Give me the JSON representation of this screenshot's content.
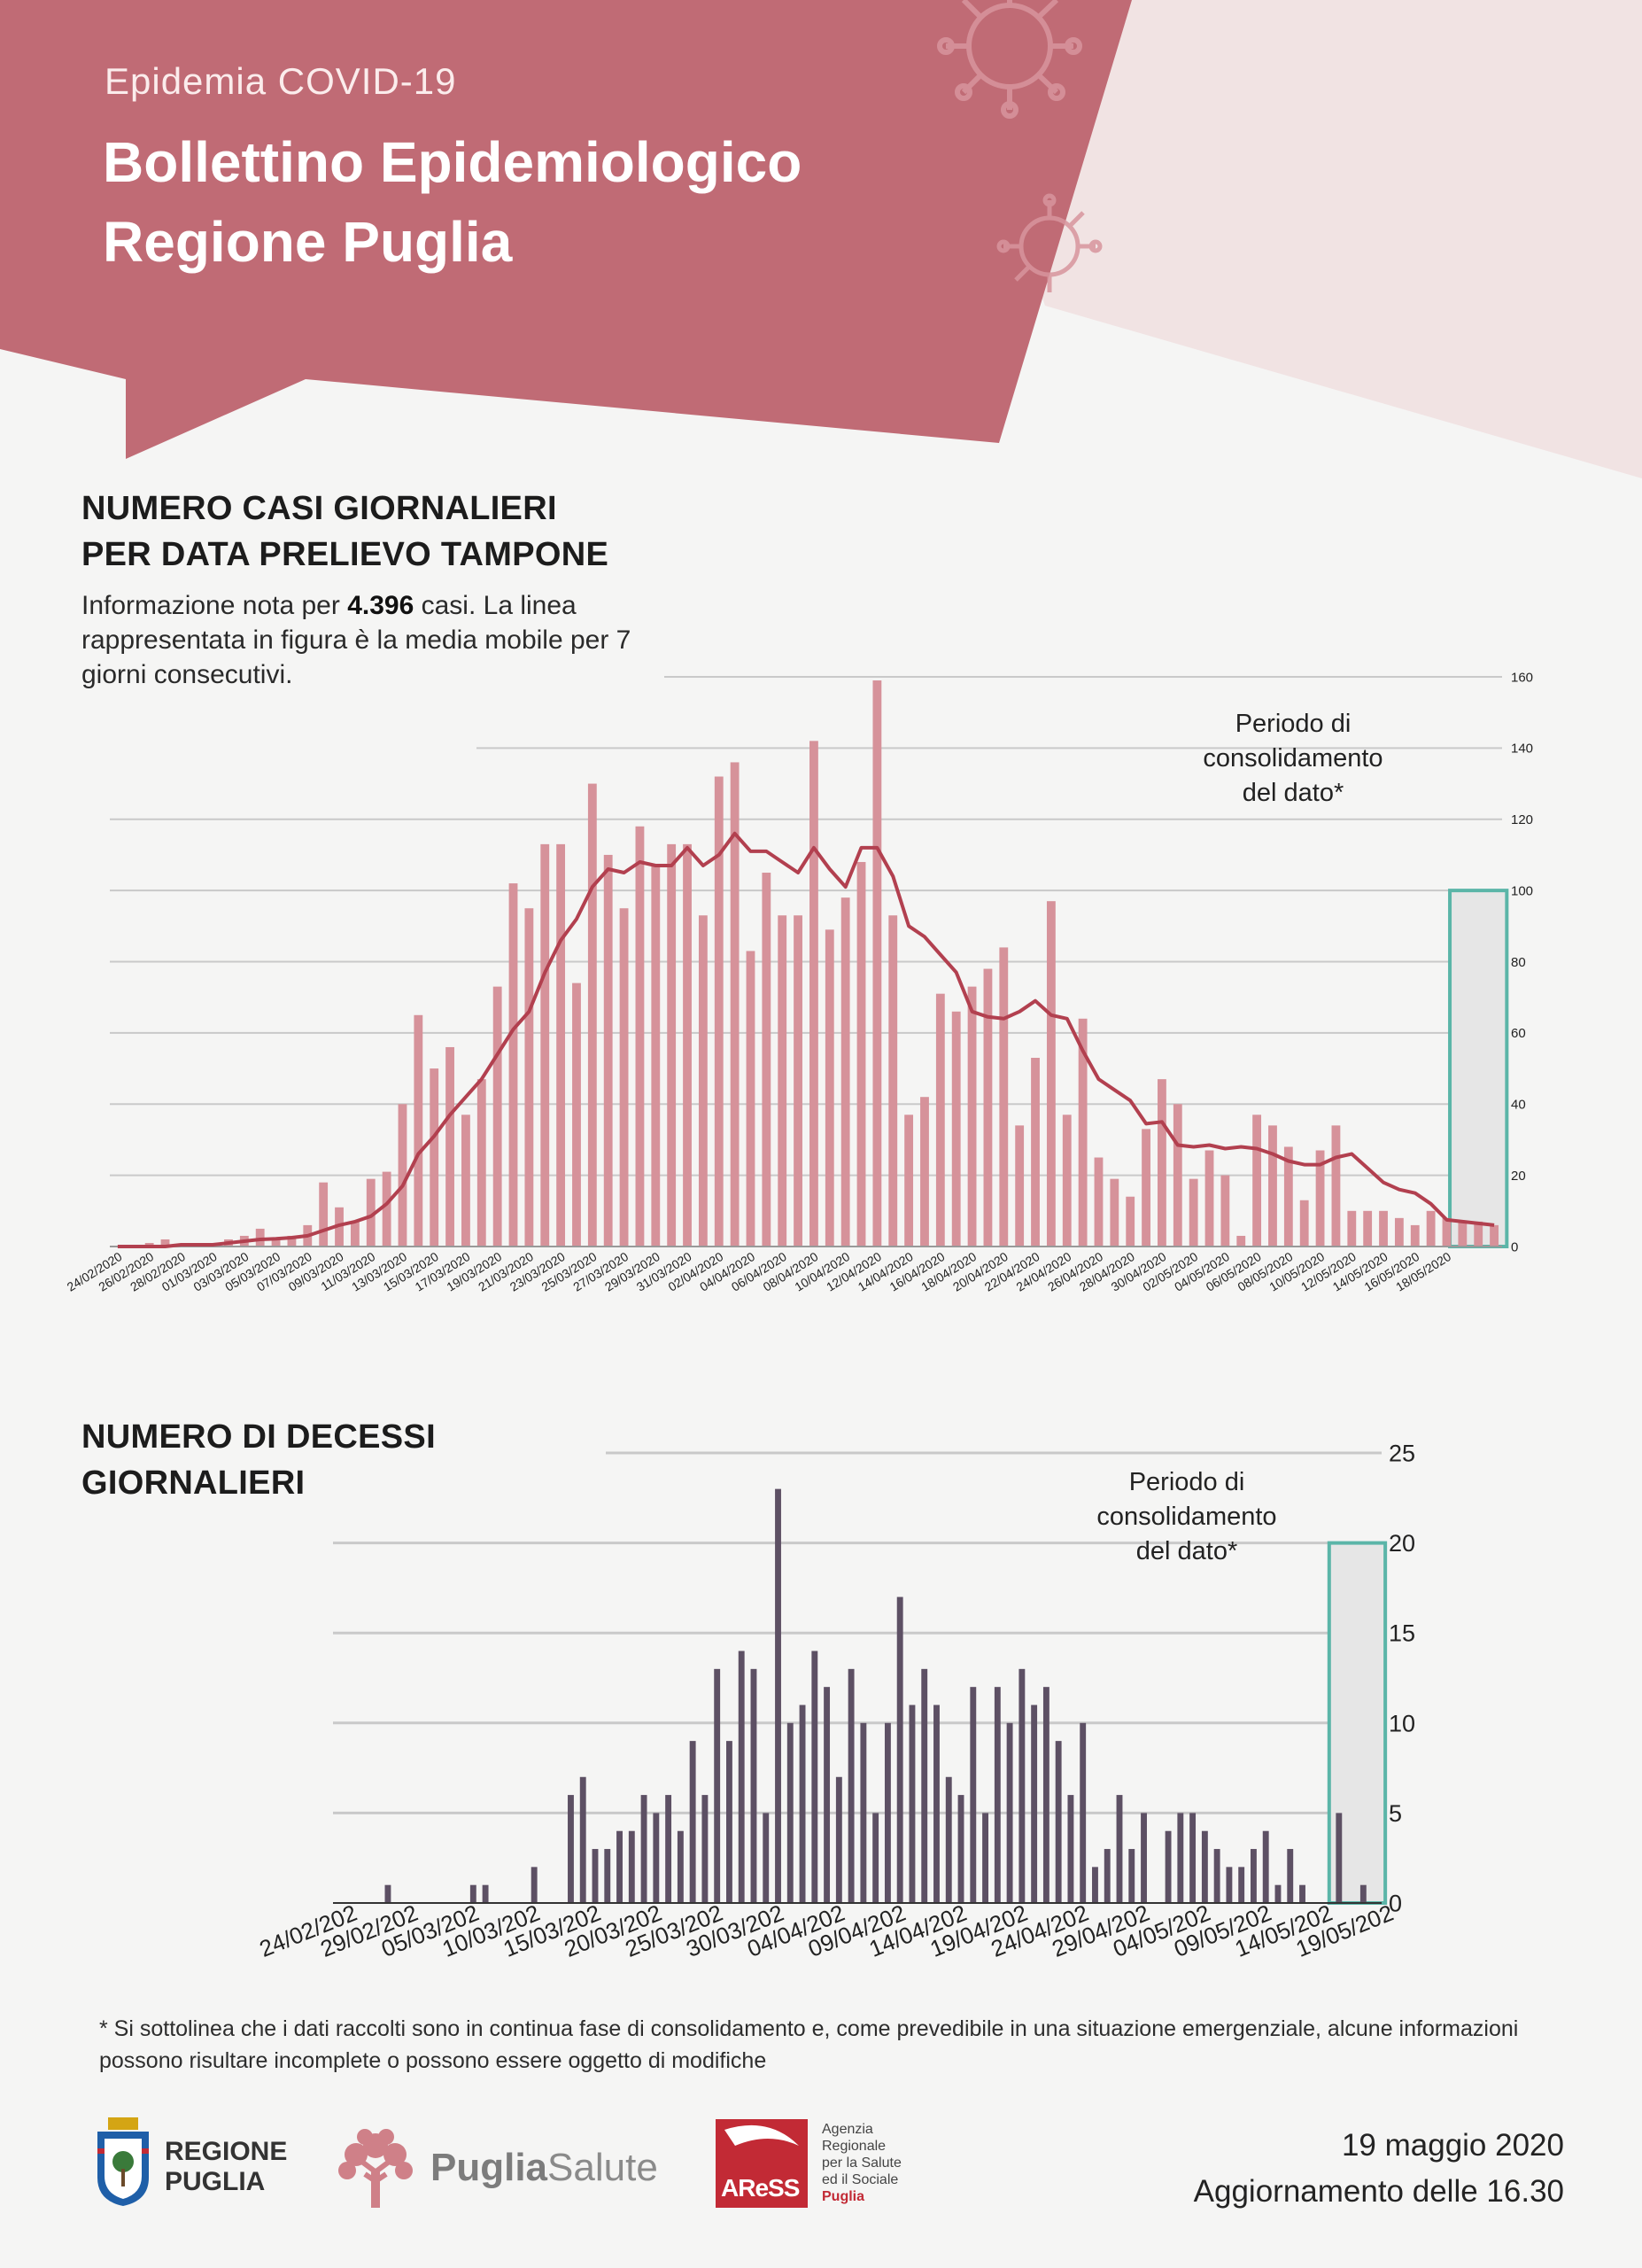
{
  "header": {
    "pre_title": "Epidemia COVID-19",
    "title_line1": "Bollettino Epidemiologico",
    "title_line2": "Regione Puglia",
    "colors": {
      "banner": "#c06b75",
      "banner_light": "#f1e3e3",
      "background": "#f5f5f4"
    },
    "icons": [
      "virus-icon",
      "virus-icon"
    ]
  },
  "cases_section": {
    "title_line1": "NUMERO CASI GIORNALIERI",
    "title_line2": "PER DATA PRELIEVO TAMPONE",
    "subtitle_pre": "Informazione nota per",
    "subtitle_count": "4.396",
    "subtitle_post": "casi. La linea rappresentata in figura è la media mobile per 7 giorni consecutivi."
  },
  "deaths_section": {
    "title_line1": "NUMERO DI DECESSI",
    "title_line2": "GIORNALIERI"
  },
  "chart_data": [
    {
      "type": "bar",
      "xlabel": "",
      "ylabel": "",
      "ylim": [
        0,
        160
      ],
      "yticks": [
        0,
        20,
        40,
        60,
        80,
        100,
        120,
        140,
        160
      ],
      "y_axis_position": "right",
      "grid": true,
      "start_date": "24/02/2020",
      "x_tick_labels": [
        "24/02/2020",
        "26/02/2020",
        "28/02/2020",
        "01/03/2020",
        "03/03/2020",
        "05/03/2020",
        "07/03/2020",
        "09/03/2020",
        "11/03/2020",
        "13/03/2020",
        "15/03/2020",
        "17/03/2020",
        "19/03/2020",
        "21/03/2020",
        "23/03/2020",
        "25/03/2020",
        "27/03/2020",
        "29/03/2020",
        "31/03/2020",
        "02/04/2020",
        "04/04/2020",
        "06/04/2020",
        "08/04/2020",
        "10/04/2020",
        "12/04/2020",
        "14/04/2020",
        "16/04/2020",
        "18/04/2020",
        "20/04/2020",
        "22/04/2020",
        "24/04/2020",
        "26/04/2020",
        "28/04/2020",
        "30/04/2020",
        "02/05/2020",
        "04/05/2020",
        "06/05/2020",
        "08/05/2020",
        "10/05/2020",
        "12/05/2020",
        "14/05/2020",
        "16/05/2020",
        "18/05/2020"
      ],
      "series": [
        {
          "type": "bar",
          "color": "#d6929a",
          "values": [
            0,
            0,
            1,
            2,
            0,
            0,
            0,
            2,
            3,
            5,
            2,
            3,
            6,
            18,
            11,
            7,
            19,
            21,
            40,
            65,
            50,
            56,
            37,
            47,
            73,
            102,
            95,
            113,
            113,
            74,
            130,
            110,
            95,
            118,
            107,
            113,
            113,
            93,
            132,
            136,
            83,
            105,
            93,
            93,
            142,
            89,
            98,
            108,
            159,
            93,
            37,
            42,
            71,
            66,
            73,
            78,
            84,
            34,
            53,
            97,
            37,
            64,
            25,
            19,
            14,
            33,
            47,
            40,
            19,
            27,
            20,
            3,
            37,
            34,
            28,
            13,
            27,
            34,
            10,
            10,
            10,
            8,
            6,
            10,
            8,
            7,
            7,
            6
          ]
        },
        {
          "name": "media mobile 7 giorni",
          "type": "line",
          "color": "#b2404f",
          "values": [
            0,
            0,
            0,
            0,
            0.5,
            0.5,
            0.5,
            1,
            1.5,
            2,
            2.2,
            2.5,
            3,
            4.5,
            6,
            7,
            8.5,
            12,
            17,
            26,
            31,
            37,
            42,
            47,
            54,
            61,
            66,
            77,
            86,
            92,
            101,
            106,
            105,
            108,
            107,
            107,
            112,
            107,
            110,
            116,
            111,
            111,
            108,
            105,
            112,
            106,
            101,
            112,
            112,
            104,
            90,
            87,
            82,
            77,
            66,
            64.5,
            64,
            66,
            69,
            65,
            64,
            55,
            47,
            44,
            41,
            34.5,
            35,
            28.5,
            28,
            28.5,
            27.5,
            28,
            27.5,
            26,
            24,
            23,
            23,
            25,
            26,
            22,
            18,
            16,
            15,
            12,
            7.5,
            7,
            6.5,
            6
          ]
        }
      ],
      "annotation": "Periodo di consolidamento del dato*",
      "highlight": {
        "from_index": 85,
        "to_index": 87,
        "color": "#5bb5a8"
      }
    },
    {
      "type": "bar",
      "xlabel": "",
      "ylabel": "",
      "ylim": [
        0,
        25
      ],
      "yticks": [
        0,
        5,
        10,
        15,
        20,
        25
      ],
      "y_axis_position": "right",
      "grid": true,
      "start_date": "24/02/2020",
      "x_tick_labels": [
        "24/02/202",
        "29/02/202",
        "05/03/202",
        "10/03/202",
        "15/03/202",
        "20/03/202",
        "25/03/202",
        "30/03/202",
        "04/04/202",
        "09/04/202",
        "14/04/202",
        "19/04/202",
        "24/04/202",
        "29/04/202",
        "04/05/202",
        "09/05/202",
        "14/05/202",
        "19/05/202"
      ],
      "series": [
        {
          "type": "bar",
          "color": "#5d5064",
          "values": [
            0,
            0,
            0,
            0,
            1,
            0,
            0,
            0,
            0,
            0,
            0,
            1,
            1,
            0,
            0,
            0,
            2,
            0,
            0,
            6,
            7,
            3,
            3,
            4,
            4,
            6,
            5,
            6,
            4,
            9,
            6,
            13,
            9,
            14,
            13,
            5,
            23,
            10,
            11,
            14,
            12,
            7,
            13,
            10,
            5,
            10,
            17,
            11,
            13,
            11,
            7,
            6,
            12,
            5,
            12,
            10,
            13,
            11,
            12,
            9,
            6,
            10,
            2,
            3,
            6,
            3,
            5,
            0,
            4,
            5,
            5,
            4,
            3,
            2,
            2,
            3,
            4,
            1,
            3,
            1,
            0,
            0,
            5,
            0,
            1,
            0
          ]
        }
      ],
      "annotation": "Periodo di consolidamento del dato*",
      "highlight": {
        "from_index": 82,
        "to_index": 85,
        "color": "#5bb5a8"
      }
    }
  ],
  "footnote": "* Si sottolinea che i dati raccolti sono in continua fase di consolidamento e, come prevedibile in una situazione emergenziale, alcune informazioni possono risultare incomplete o possono essere oggetto di modifiche",
  "footer": {
    "date": "19 maggio 2020",
    "update": "Aggiornamento delle 16.30",
    "logo_regione": [
      "REGIONE",
      "PUGLIA"
    ],
    "logo_puglia_bold": "Puglia",
    "logo_puglia_light": "Salute",
    "logo_aress": "AReSS",
    "logo_aress_lines": [
      "Agenzia",
      "Regionale",
      "per la Salute",
      "ed il Sociale"
    ],
    "logo_aress_red": "Puglia"
  }
}
